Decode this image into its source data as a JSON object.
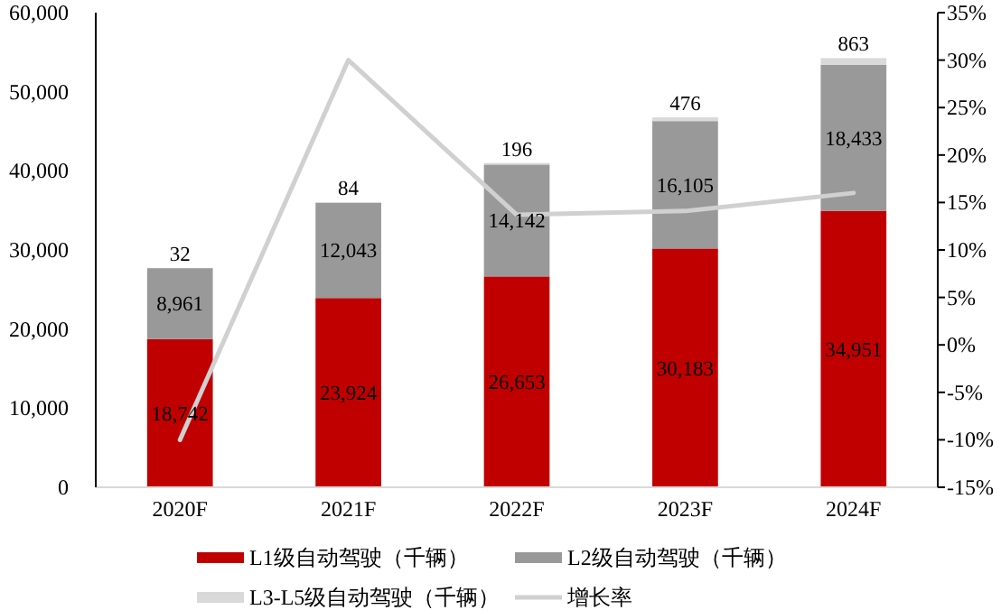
{
  "chart_data": {
    "type": "bar",
    "stacked": true,
    "categories": [
      "2020F",
      "2021F",
      "2022F",
      "2023F",
      "2024F"
    ],
    "series": [
      {
        "name": "L1级自动驾驶（千辆）",
        "color": "#c00000",
        "values": [
          18742,
          23924,
          26653,
          30183,
          34951
        ],
        "value_labels": [
          "18,742",
          "23,924",
          "26,653",
          "30,183",
          "34,951"
        ]
      },
      {
        "name": "L2级自动驾驶（千辆）",
        "color": "#999999",
        "values": [
          8961,
          12043,
          14142,
          16105,
          18433
        ],
        "value_labels": [
          "8,961",
          "12,043",
          "14,142",
          "16,105",
          "18,433"
        ]
      },
      {
        "name": "L3-L5级自动驾驶（千辆）",
        "color": "#d9d9d9",
        "values": [
          32,
          84,
          196,
          476,
          863
        ],
        "value_labels": [
          "32",
          "84",
          "196",
          "476",
          "863"
        ]
      },
      {
        "name": "增长率",
        "type": "line",
        "axis": "y2",
        "color": "#d0d0d0",
        "values": [
          -10,
          30,
          13.7,
          14.1,
          16
        ]
      }
    ],
    "ylim": [
      0,
      60000
    ],
    "yticks": [
      0,
      {
        "value": 10000,
        "label": "10,000"
      },
      {
        "value": 20000,
        "label": "20,000"
      },
      {
        "value": 30000,
        "label": "30,000"
      },
      {
        "value": 40000,
        "label": "40,000"
      },
      {
        "value": 50000,
        "label": "50,000"
      },
      {
        "value": 60000,
        "label": "60,000"
      }
    ],
    "y2lim": [
      -15,
      35
    ],
    "y2ticks": [
      {
        "value": -15,
        "label": "-15%"
      },
      {
        "value": -10,
        "label": "-10%"
      },
      {
        "value": -5,
        "label": "-5%"
      },
      {
        "value": 0,
        "label": "0%"
      },
      {
        "value": 5,
        "label": "5%"
      },
      {
        "value": 10,
        "label": "10%"
      },
      {
        "value": 15,
        "label": "15%"
      },
      {
        "value": 20,
        "label": "20%"
      },
      {
        "value": 25,
        "label": "25%"
      },
      {
        "value": 30,
        "label": "30%"
      },
      {
        "value": 35,
        "label": "35%"
      }
    ],
    "legend": "bottom",
    "marker": "none",
    "line_style": "solid"
  }
}
